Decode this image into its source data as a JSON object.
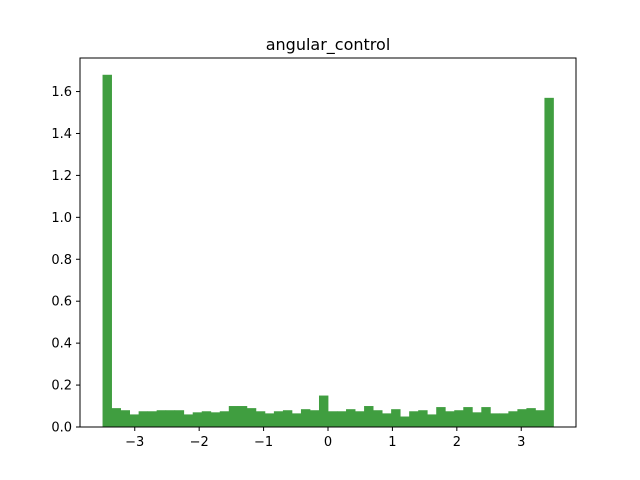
{
  "chart_data": {
    "type": "bar",
    "title": "angular_control",
    "xlabel": "",
    "ylabel": "",
    "xlim": [
      -3.85,
      3.85
    ],
    "ylim": [
      0,
      1.76
    ],
    "bar_color": "#409e40",
    "grid": false,
    "bin_range": [
      -3.5,
      3.5
    ],
    "bin_count": 50,
    "values": [
      1.68,
      0.09,
      0.08,
      0.06,
      0.075,
      0.075,
      0.08,
      0.08,
      0.08,
      0.06,
      0.07,
      0.075,
      0.07,
      0.075,
      0.1,
      0.1,
      0.09,
      0.075,
      0.065,
      0.075,
      0.08,
      0.065,
      0.085,
      0.08,
      0.15,
      0.075,
      0.075,
      0.085,
      0.075,
      0.1,
      0.08,
      0.065,
      0.085,
      0.05,
      0.075,
      0.08,
      0.06,
      0.095,
      0.075,
      0.08,
      0.095,
      0.07,
      0.095,
      0.065,
      0.065,
      0.075,
      0.085,
      0.09,
      0.08,
      1.57
    ],
    "x_ticks": [
      {
        "value": -3,
        "label": "−3"
      },
      {
        "value": -2,
        "label": "−2"
      },
      {
        "value": -1,
        "label": "−1"
      },
      {
        "value": 0,
        "label": "0"
      },
      {
        "value": 1,
        "label": "1"
      },
      {
        "value": 2,
        "label": "2"
      },
      {
        "value": 3,
        "label": "3"
      }
    ],
    "y_ticks": [
      {
        "value": 0.0,
        "label": "0.0"
      },
      {
        "value": 0.2,
        "label": "0.2"
      },
      {
        "value": 0.4,
        "label": "0.4"
      },
      {
        "value": 0.6,
        "label": "0.6"
      },
      {
        "value": 0.8,
        "label": "0.8"
      },
      {
        "value": 1.0,
        "label": "1.0"
      },
      {
        "value": 1.2,
        "label": "1.2"
      },
      {
        "value": 1.4,
        "label": "1.4"
      },
      {
        "value": 1.6,
        "label": "1.6"
      }
    ]
  }
}
